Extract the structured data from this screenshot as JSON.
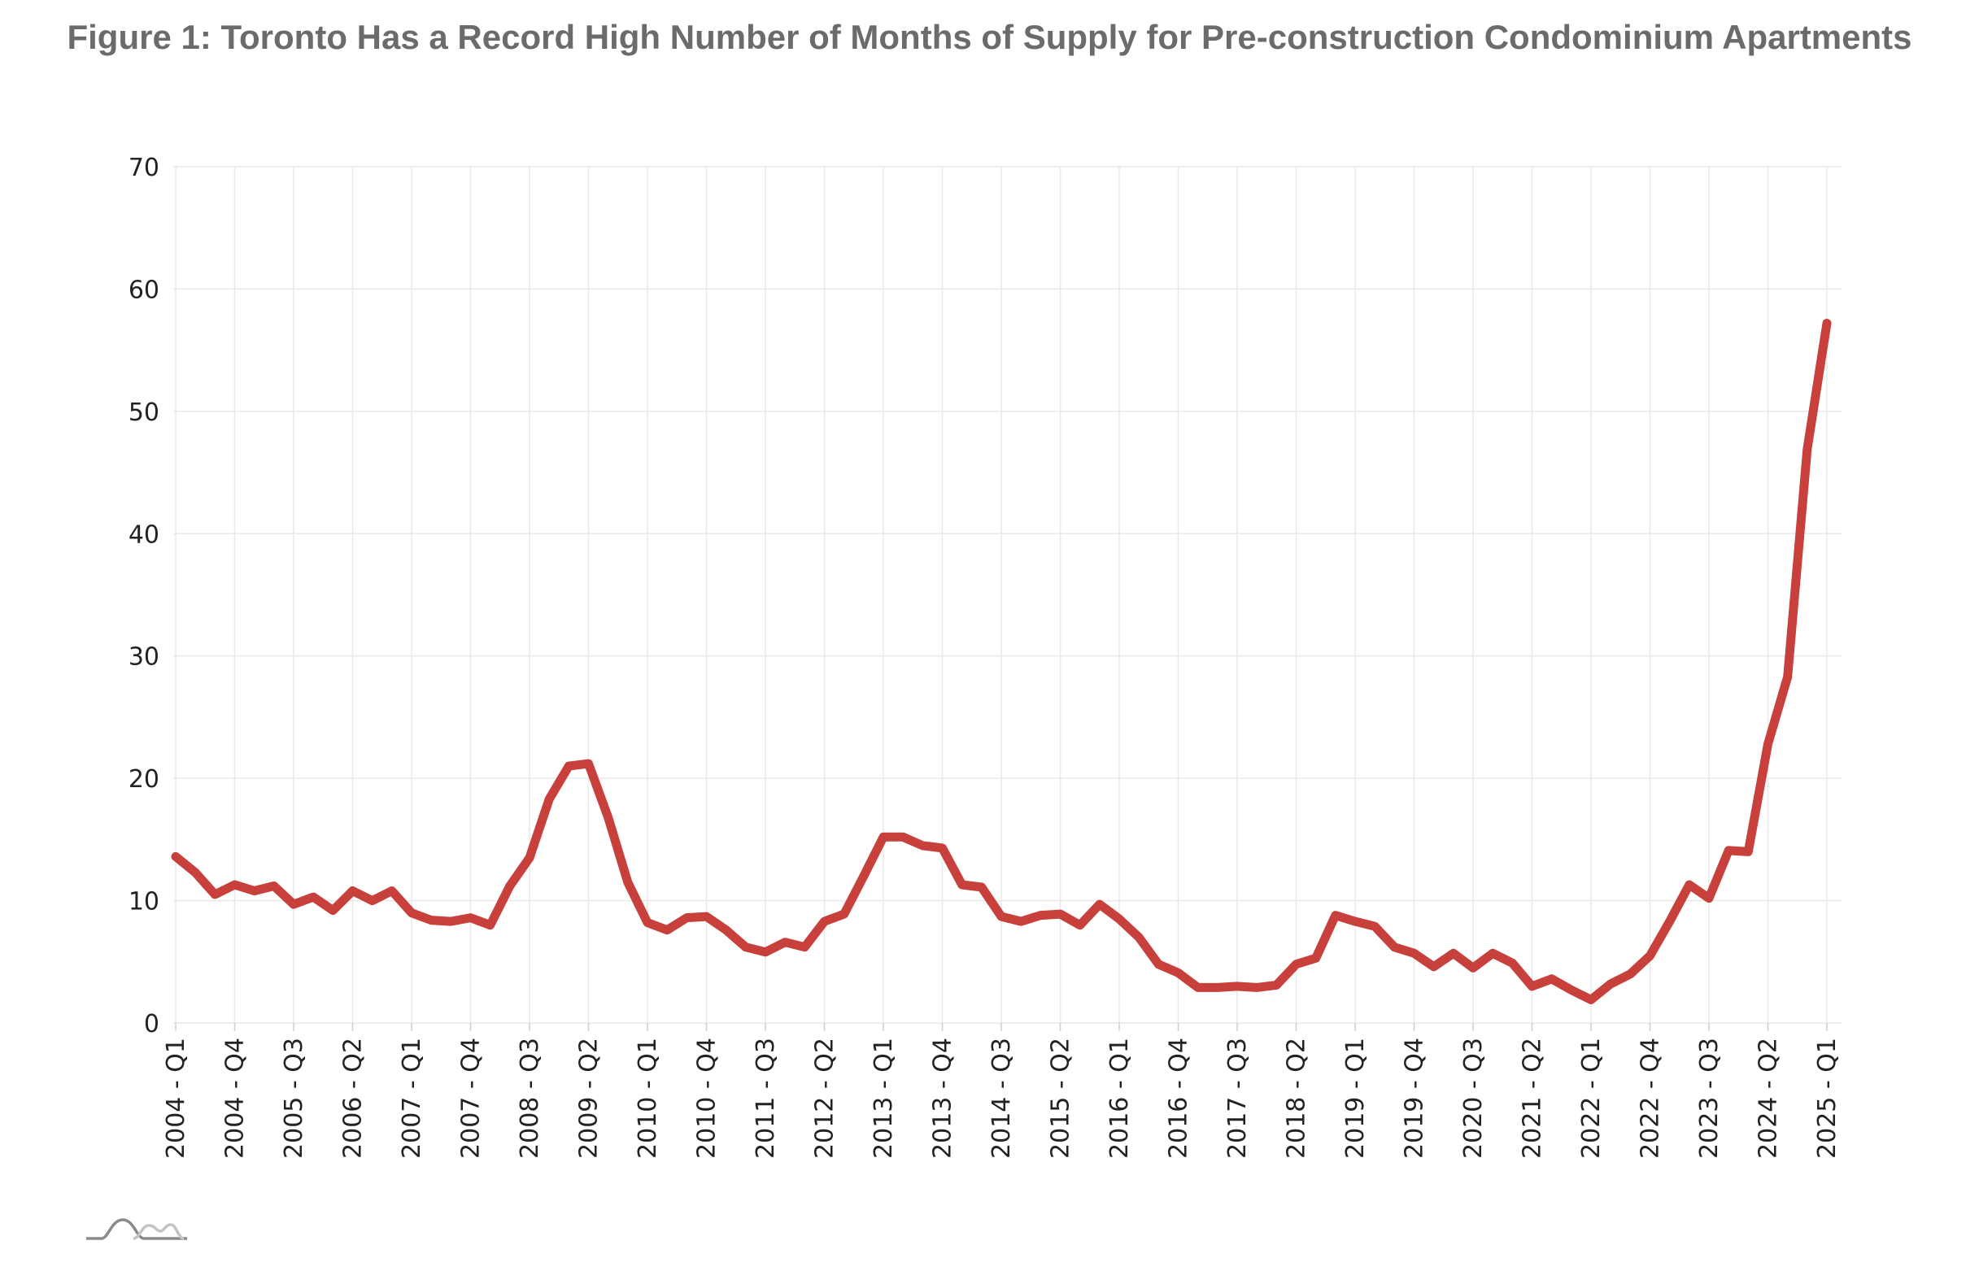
{
  "chart_data": {
    "type": "line",
    "title": "Figure 1: Toronto Has a Record High Number of Months of Supply for Pre-construction Condominium Apartments",
    "xlabel": "",
    "ylabel": "",
    "ylim": [
      0,
      70
    ],
    "yticks": [
      0,
      10,
      20,
      30,
      40,
      50,
      60,
      70
    ],
    "grid": true,
    "legend": "none",
    "color": "#c8403b",
    "x": [
      "2004 - Q1",
      "2004 - Q2",
      "2004 - Q3",
      "2004 - Q4",
      "2005 - Q1",
      "2005 - Q2",
      "2005 - Q3",
      "2005 - Q4",
      "2006 - Q1",
      "2006 - Q2",
      "2006 - Q3",
      "2006 - Q4",
      "2007 - Q1",
      "2007 - Q2",
      "2007 - Q3",
      "2007 - Q4",
      "2008 - Q1",
      "2008 - Q2",
      "2008 - Q3",
      "2008 - Q4",
      "2009 - Q1",
      "2009 - Q2",
      "2009 - Q3",
      "2009 - Q4",
      "2010 - Q1",
      "2010 - Q2",
      "2010 - Q3",
      "2010 - Q4",
      "2011 - Q1",
      "2011 - Q2",
      "2011 - Q3",
      "2011 - Q4",
      "2012 - Q1",
      "2012 - Q2",
      "2012 - Q3",
      "2012 - Q4",
      "2013 - Q1",
      "2013 - Q2",
      "2013 - Q3",
      "2013 - Q4",
      "2014 - Q1",
      "2014 - Q2",
      "2014 - Q3",
      "2014 - Q4",
      "2015 - Q1",
      "2015 - Q2",
      "2015 - Q3",
      "2015 - Q4",
      "2016 - Q1",
      "2016 - Q2",
      "2016 - Q3",
      "2016 - Q4",
      "2017 - Q1",
      "2017 - Q2",
      "2017 - Q3",
      "2017 - Q4",
      "2018 - Q1",
      "2018 - Q2",
      "2018 - Q3",
      "2018 - Q4",
      "2019 - Q1",
      "2019 - Q2",
      "2019 - Q3",
      "2019 - Q4",
      "2020 - Q1",
      "2020 - Q2",
      "2020 - Q3",
      "2020 - Q4",
      "2021 - Q1",
      "2021 - Q2",
      "2021 - Q3",
      "2021 - Q4",
      "2022 - Q1",
      "2022 - Q2",
      "2022 - Q3",
      "2022 - Q4",
      "2023 - Q1",
      "2023 - Q2",
      "2023 - Q3",
      "2023 - Q4",
      "2024 - Q1",
      "2024 - Q2",
      "2024 - Q3",
      "2024 - Q4",
      "2025 - Q1"
    ],
    "tick_labels": [
      "2004 - Q1",
      "2004 - Q4",
      "2005 - Q3",
      "2006 - Q2",
      "2007 - Q1",
      "2007 - Q4",
      "2008 - Q3",
      "2009 - Q2",
      "2010 - Q1",
      "2010 - Q4",
      "2011 - Q3",
      "2012 - Q2",
      "2013 - Q1",
      "2013 - Q4",
      "2014 - Q3",
      "2015 - Q2",
      "2016 - Q1",
      "2016 - Q4",
      "2017 - Q3",
      "2018 - Q2",
      "2019 - Q1",
      "2019 - Q4",
      "2020 - Q3",
      "2021 - Q2",
      "2022 - Q1",
      "2022 - Q4",
      "2023 - Q3",
      "2024 - Q2",
      "2025 - Q1"
    ],
    "series": [
      {
        "values": [
          13.6,
          12.3,
          10.5,
          11.3,
          10.8,
          11.2,
          9.7,
          10.3,
          9.2,
          10.8,
          10.0,
          10.8,
          9.0,
          8.4,
          8.3,
          8.6,
          8.0,
          11.2,
          13.5,
          18.3,
          21.0,
          21.2,
          16.8,
          11.5,
          8.2,
          7.6,
          8.6,
          8.7,
          7.6,
          6.2,
          5.8,
          6.6,
          6.2,
          8.3,
          8.9,
          12.0,
          15.2,
          15.2,
          14.5,
          14.3,
          11.3,
          11.1,
          8.7,
          8.3,
          8.8,
          8.9,
          8.0,
          9.7,
          8.5,
          7.0,
          4.8,
          4.1,
          2.9,
          2.9,
          3.0,
          2.9,
          3.1,
          4.8,
          5.3,
          8.8,
          8.3,
          7.9,
          6.2,
          5.7,
          4.6,
          5.7,
          4.5,
          5.7,
          4.9,
          3.0,
          3.6,
          2.7,
          1.9,
          3.2,
          4.0,
          5.5,
          8.3,
          11.3,
          10.2,
          14.1,
          14.0,
          22.8,
          28.3,
          46.9,
          57.2
        ]
      }
    ]
  }
}
